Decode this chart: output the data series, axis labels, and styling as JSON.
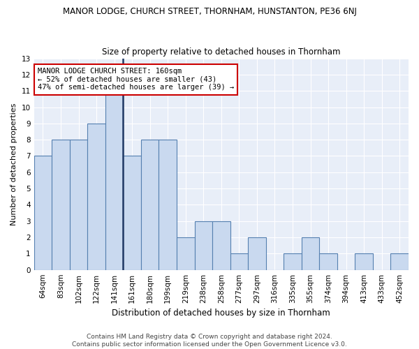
{
  "title1": "MANOR LODGE, CHURCH STREET, THORNHAM, HUNSTANTON, PE36 6NJ",
  "title2": "Size of property relative to detached houses in Thornham",
  "xlabel": "Distribution of detached houses by size in Thornham",
  "ylabel": "Number of detached properties",
  "footnote1": "Contains HM Land Registry data © Crown copyright and database right 2024.",
  "footnote2": "Contains public sector information licensed under the Open Government Licence v3.0.",
  "categories": [
    "64sqm",
    "83sqm",
    "102sqm",
    "122sqm",
    "141sqm",
    "161sqm",
    "180sqm",
    "199sqm",
    "219sqm",
    "238sqm",
    "258sqm",
    "277sqm",
    "297sqm",
    "316sqm",
    "335sqm",
    "355sqm",
    "374sqm",
    "394sqm",
    "413sqm",
    "433sqm",
    "452sqm"
  ],
  "values": [
    7,
    8,
    8,
    9,
    11,
    7,
    8,
    8,
    2,
    3,
    3,
    1,
    2,
    0,
    1,
    2,
    1,
    0,
    1,
    0,
    1
  ],
  "bar_color": "#c9d9ef",
  "bar_edge_color": "#5580b0",
  "highlight_index": 4,
  "highlight_line_color": "#1f3864",
  "annotation_title": "MANOR LODGE CHURCH STREET: 160sqm",
  "annotation_line1": "← 52% of detached houses are smaller (43)",
  "annotation_line2": "47% of semi-detached houses are larger (39) →",
  "annotation_box_color": "#ffffff",
  "annotation_box_edge": "#cc0000",
  "ylim": [
    0,
    13
  ],
  "yticks": [
    0,
    1,
    2,
    3,
    4,
    5,
    6,
    7,
    8,
    9,
    10,
    11,
    12,
    13
  ],
  "plot_bg_color": "#e8eef8",
  "grid_color": "#ffffff",
  "title1_fontsize": 8.5,
  "title2_fontsize": 8.5,
  "xlabel_fontsize": 8.5,
  "ylabel_fontsize": 8.0,
  "tick_fontsize": 7.5,
  "annot_fontsize": 7.5,
  "footnote_fontsize": 6.5
}
